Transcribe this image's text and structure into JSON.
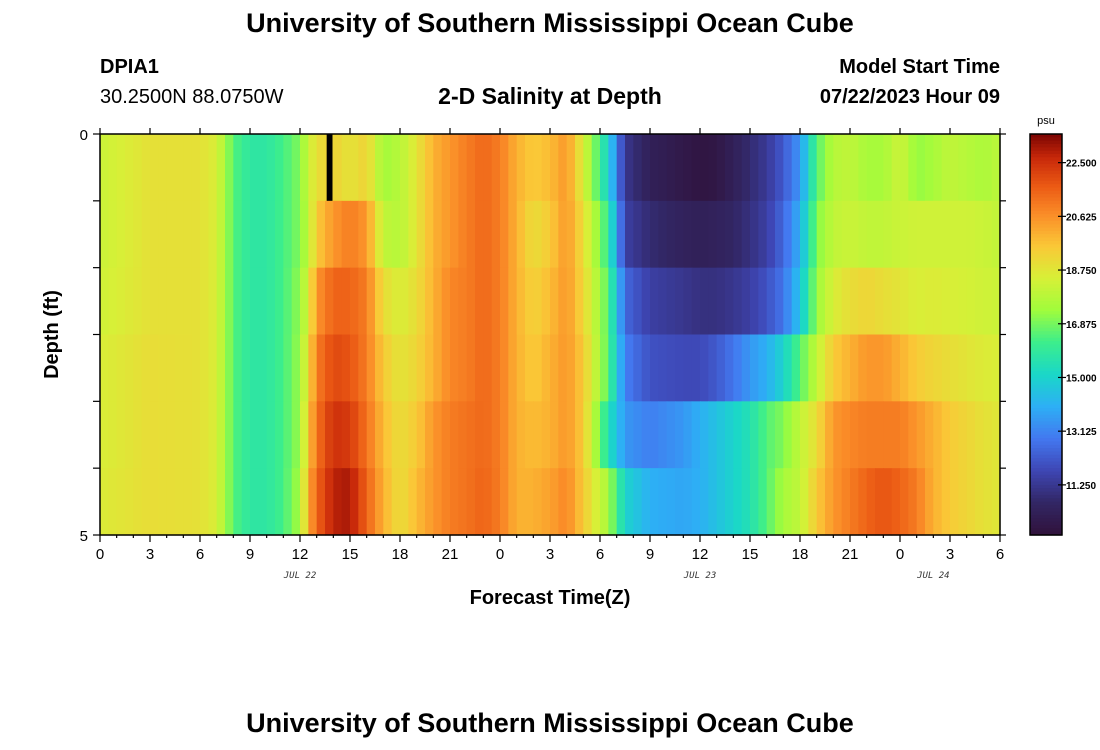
{
  "header": {
    "title": "University of Southern Mississippi Ocean Cube",
    "station_id": "DPIA1",
    "station_coords": "30.2500N  88.0750W",
    "subtitle": "2-D Salinity at Depth",
    "model_start_label": "Model Start Time",
    "model_start_value": "07/22/2023 Hour 09"
  },
  "footer": {
    "title": "University of Southern Mississippi Ocean Cube"
  },
  "chart_data": {
    "type": "heatmap",
    "title": "2-D Salinity at Depth",
    "xlabel": "Forecast Time(Z)",
    "ylabel": "Depth (ft)",
    "x_unit": "hours from 07/22/2023 00Z",
    "x_range": [
      0,
      54
    ],
    "y_range": [
      0,
      5
    ],
    "y_ticks": [
      0,
      5
    ],
    "x_tick_labels": [
      "0",
      "3",
      "6",
      "9",
      "12",
      "15",
      "18",
      "21",
      "0",
      "3",
      "6",
      "9",
      "12",
      "15",
      "18",
      "21",
      "0",
      "3",
      "6"
    ],
    "date_labels": [
      {
        "text": "JUL 22",
        "x": 12
      },
      {
        "text": "JUL 23",
        "x": 36
      },
      {
        "text": "JUL 24",
        "x": 50
      }
    ],
    "colorbar": {
      "unit": "psu",
      "min": 9.5,
      "max": 23.5,
      "tick_labels": [
        "22.500",
        "20.625",
        "18.750",
        "16.875",
        "15.000",
        "13.125",
        "11.250"
      ],
      "tick_values": [
        22.5,
        20.625,
        18.75,
        16.875,
        15.0,
        13.125,
        11.25
      ]
    },
    "depth_layers": [
      0,
      1,
      2,
      3,
      4,
      5
    ],
    "time_keys": [
      0,
      3,
      6,
      7,
      8,
      9,
      10,
      11,
      12,
      12.5,
      13,
      14,
      15,
      16,
      17,
      18,
      19,
      20,
      21,
      22,
      23,
      24,
      25,
      26,
      27,
      28,
      29,
      30.5,
      31.5,
      33,
      35,
      36,
      37,
      38,
      39,
      40,
      41,
      42,
      43,
      44,
      45,
      46,
      47,
      48,
      49,
      50,
      51,
      52,
      53,
      54
    ],
    "salinity_rows": [
      [
        18.2,
        18.9,
        18.9,
        18.5,
        16.5,
        15.8,
        15.8,
        16.3,
        17.0,
        18.2,
        19.0,
        19.3,
        18.8,
        19.3,
        17.4,
        17.8,
        18.8,
        20.0,
        20.5,
        21.0,
        21.4,
        21.0,
        20.0,
        19.5,
        19.8,
        20.5,
        18.5,
        15.0,
        11.2,
        10.3,
        9.9,
        9.7,
        9.8,
        10.3,
        10.8,
        11.3,
        12.2,
        13.5,
        16.5,
        17.8,
        18.0,
        17.5,
        17.5,
        18.3,
        17.2,
        17.5,
        18.0,
        17.8,
        17.6,
        17.9
      ],
      [
        18.2,
        18.9,
        18.9,
        18.5,
        16.5,
        15.8,
        15.8,
        16.3,
        17.0,
        18.0,
        19.5,
        20.5,
        21.0,
        20.5,
        18.0,
        17.8,
        18.8,
        20.0,
        20.5,
        21.0,
        21.4,
        21.0,
        20.0,
        19.0,
        19.5,
        20.5,
        19.0,
        16.0,
        11.5,
        10.8,
        10.4,
        10.3,
        10.4,
        10.6,
        11.0,
        11.5,
        12.5,
        14.0,
        17.0,
        18.0,
        18.2,
        18.0,
        18.0,
        18.2,
        18.3,
        18.3,
        18.3,
        18.3,
        18.2,
        18.0
      ],
      [
        18.3,
        18.9,
        18.9,
        18.5,
        16.5,
        15.8,
        15.8,
        16.3,
        17.2,
        18.5,
        20.5,
        21.5,
        21.5,
        21.0,
        19.0,
        18.5,
        19.0,
        20.0,
        20.8,
        21.0,
        21.4,
        21.0,
        20.0,
        19.3,
        19.8,
        20.5,
        19.2,
        16.5,
        12.5,
        11.5,
        11.2,
        11.0,
        11.0,
        11.2,
        11.5,
        12.0,
        12.8,
        14.5,
        17.3,
        18.5,
        19.0,
        19.2,
        19.0,
        18.8,
        18.5,
        18.6,
        18.5,
        18.4,
        18.3,
        18.2
      ],
      [
        18.5,
        19.0,
        18.9,
        18.5,
        16.5,
        15.8,
        15.8,
        16.3,
        17.3,
        19.0,
        21.0,
        22.0,
        21.8,
        21.0,
        19.5,
        18.8,
        19.2,
        20.0,
        20.8,
        21.0,
        21.4,
        21.0,
        20.0,
        19.5,
        20.0,
        20.5,
        19.5,
        16.5,
        13.0,
        12.0,
        11.8,
        11.8,
        12.2,
        12.8,
        13.5,
        14.0,
        15.0,
        16.5,
        18.0,
        19.5,
        20.0,
        20.5,
        20.5,
        20.0,
        19.5,
        19.2,
        19.0,
        18.8,
        18.6,
        18.5
      ],
      [
        18.5,
        19.0,
        18.9,
        18.5,
        16.5,
        15.8,
        15.8,
        16.3,
        17.3,
        19.5,
        21.2,
        22.5,
        22.3,
        21.2,
        19.8,
        19.0,
        19.5,
        20.5,
        21.0,
        21.2,
        21.4,
        21.0,
        20.0,
        19.8,
        20.0,
        20.5,
        19.5,
        15.5,
        13.5,
        13.0,
        13.5,
        14.0,
        14.5,
        15.0,
        15.5,
        16.5,
        17.0,
        18.0,
        19.0,
        20.5,
        20.8,
        21.0,
        21.0,
        21.0,
        20.5,
        20.0,
        19.5,
        19.2,
        18.9,
        18.7
      ],
      [
        18.6,
        19.0,
        18.9,
        18.5,
        16.5,
        15.8,
        15.8,
        16.3,
        17.5,
        20.0,
        21.5,
        22.8,
        23.0,
        21.5,
        20.0,
        19.0,
        19.8,
        20.5,
        21.0,
        21.2,
        21.5,
        21.0,
        20.0,
        20.0,
        20.3,
        20.8,
        19.5,
        17.5,
        15.0,
        14.0,
        13.8,
        14.0,
        14.5,
        15.0,
        15.5,
        16.5,
        17.5,
        18.0,
        19.5,
        20.5,
        21.0,
        21.5,
        21.8,
        21.5,
        21.0,
        20.0,
        19.5,
        19.2,
        18.9,
        18.7
      ]
    ],
    "missing_cell": {
      "x": [
        13.6,
        13.95
      ],
      "depth_layer": 0
    }
  }
}
